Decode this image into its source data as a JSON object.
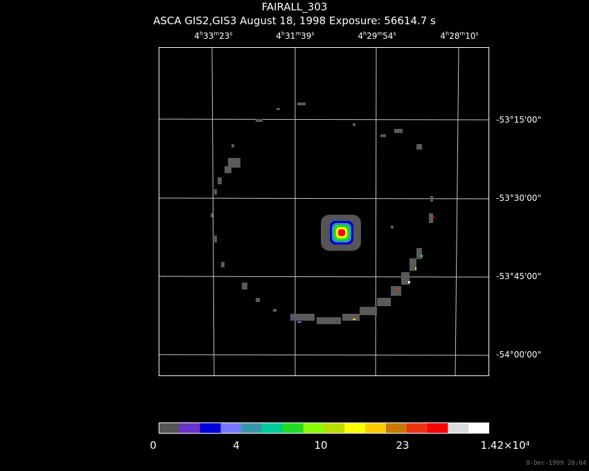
{
  "title": "FAIRALL_303",
  "subtitle": "ASCA GIS2,GIS3 August 18, 1998 Exposure: 56614.7 s",
  "ra_labels": [
    {
      "h": "4",
      "m": "33",
      "s": "23"
    },
    {
      "h": "4",
      "m": "31",
      "s": "39"
    },
    {
      "h": "4",
      "m": "29",
      "s": "54"
    },
    {
      "h": "4",
      "m": "28",
      "s": "10"
    }
  ],
  "dec_labels": [
    "-53°15'00\"",
    "-53°30'00\"",
    "-53°45'00\"",
    "-54°00'00\""
  ],
  "colorbar": {
    "labels": [
      "0",
      "4",
      "10",
      "23",
      "1.42×10⁴"
    ],
    "colors": [
      "#555555",
      "#6633cc",
      "#0000dd",
      "#7777ff",
      "#3399aa",
      "#00cc99",
      "#22dd22",
      "#88ff00",
      "#bbdd00",
      "#ffff00",
      "#ffcc00",
      "#cc7700",
      "#ee3311",
      "#ff0000",
      "#dddddd",
      "#ffffff"
    ]
  },
  "timestamp": "8-Dec-1999 20:04"
}
